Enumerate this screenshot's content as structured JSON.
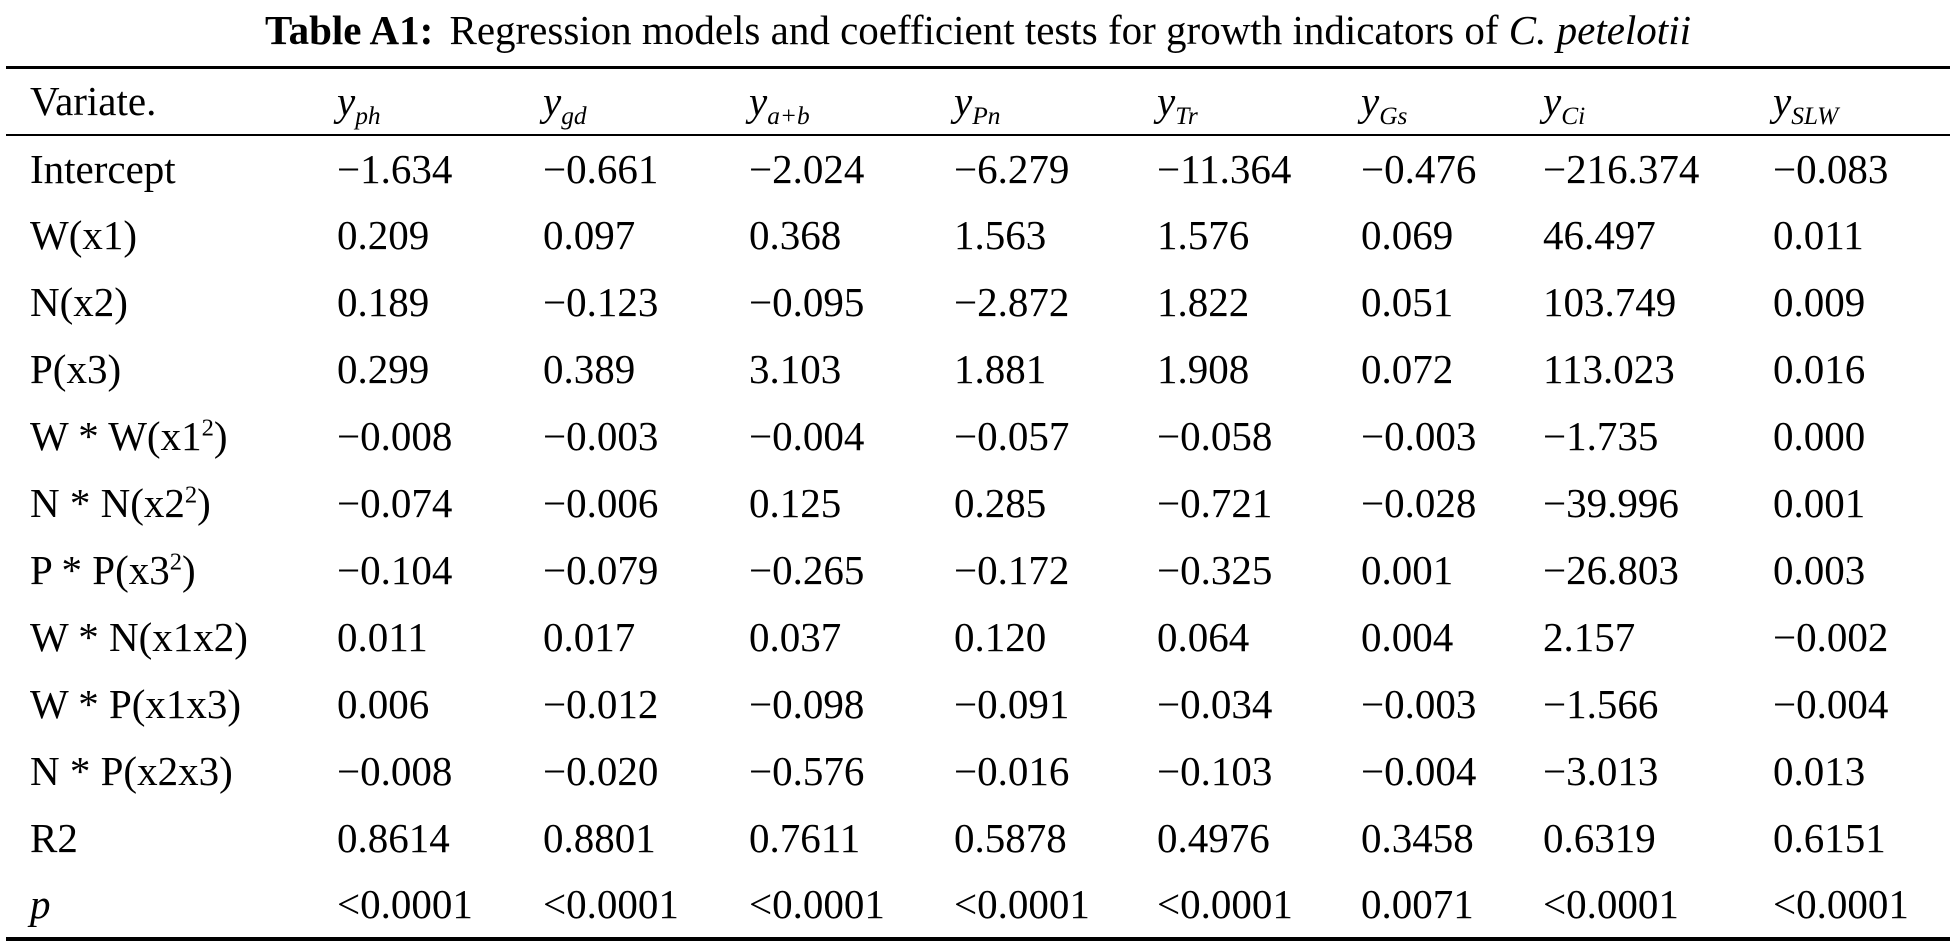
{
  "caption": {
    "label_bold": "Table A1:",
    "text": "Regression models and coefficient tests for growth indicators of",
    "species_italic": "C. petelotii"
  },
  "colors": {
    "text": "#000000",
    "background": "#ffffff",
    "rule": "#000000"
  },
  "table": {
    "header": {
      "first": "Variate.",
      "columns": [
        {
          "base": "y",
          "sub": "ph"
        },
        {
          "base": "y",
          "sub": "gd"
        },
        {
          "base": "y",
          "sub": "a+b"
        },
        {
          "base": "y",
          "sub": "Pn"
        },
        {
          "base": "y",
          "sub": "Tr"
        },
        {
          "base": "y",
          "sub": "Gs"
        },
        {
          "base": "y",
          "sub": "Ci"
        },
        {
          "base": "y",
          "sub": "SLW"
        }
      ]
    },
    "rows": [
      {
        "label": {
          "pre": "Intercept",
          "sup": "",
          "post": ""
        },
        "italic": false,
        "values": [
          "−1.634",
          "−0.661",
          "−2.024",
          "−6.279",
          "−11.364",
          "−0.476",
          "−216.374",
          "−0.083"
        ]
      },
      {
        "label": {
          "pre": "W(x1)",
          "sup": "",
          "post": ""
        },
        "italic": false,
        "values": [
          "0.209",
          "0.097",
          "0.368",
          "1.563",
          "1.576",
          "0.069",
          "46.497",
          "0.011"
        ]
      },
      {
        "label": {
          "pre": "N(x2)",
          "sup": "",
          "post": ""
        },
        "italic": false,
        "values": [
          "0.189",
          "−0.123",
          "−0.095",
          "−2.872",
          "1.822",
          "0.051",
          "103.749",
          "0.009"
        ]
      },
      {
        "label": {
          "pre": "P(x3)",
          "sup": "",
          "post": ""
        },
        "italic": false,
        "values": [
          "0.299",
          "0.389",
          "3.103",
          "1.881",
          "1.908",
          "0.072",
          "113.023",
          "0.016"
        ]
      },
      {
        "label": {
          "pre": "W * W(x1",
          "sup": "2",
          "post": ")"
        },
        "italic": false,
        "values": [
          "−0.008",
          "−0.003",
          "−0.004",
          "−0.057",
          "−0.058",
          "−0.003",
          "−1.735",
          "0.000"
        ]
      },
      {
        "label": {
          "pre": "N * N(x2",
          "sup": "2",
          "post": ")"
        },
        "italic": false,
        "values": [
          "−0.074",
          "−0.006",
          "0.125",
          "0.285",
          "−0.721",
          "−0.028",
          "−39.996",
          "0.001"
        ]
      },
      {
        "label": {
          "pre": "P * P(x3",
          "sup": "2",
          "post": ")"
        },
        "italic": false,
        "values": [
          "−0.104",
          "−0.079",
          "−0.265",
          "−0.172",
          "−0.325",
          "0.001",
          "−26.803",
          "0.003"
        ]
      },
      {
        "label": {
          "pre": "W * N(x1x2)",
          "sup": "",
          "post": ""
        },
        "italic": false,
        "values": [
          "0.011",
          "0.017",
          "0.037",
          "0.120",
          "0.064",
          "0.004",
          "2.157",
          "−0.002"
        ]
      },
      {
        "label": {
          "pre": "W * P(x1x3)",
          "sup": "",
          "post": ""
        },
        "italic": false,
        "values": [
          "0.006",
          "−0.012",
          "−0.098",
          "−0.091",
          "−0.034",
          "−0.003",
          "−1.566",
          "−0.004"
        ]
      },
      {
        "label": {
          "pre": "N * P(x2x3)",
          "sup": "",
          "post": ""
        },
        "italic": false,
        "values": [
          "−0.008",
          "−0.020",
          "−0.576",
          "−0.016",
          "−0.103",
          "−0.004",
          "−3.013",
          "0.013"
        ]
      },
      {
        "label": {
          "pre": "R2",
          "sup": "",
          "post": ""
        },
        "italic": false,
        "values": [
          "0.8614",
          "0.8801",
          "0.7611",
          "0.5878",
          "0.4976",
          "0.3458",
          "0.6319",
          "0.6151"
        ]
      },
      {
        "label": {
          "pre": "p",
          "sup": "",
          "post": ""
        },
        "italic": true,
        "values": [
          "<0.0001",
          "<0.0001",
          "<0.0001",
          "<0.0001",
          "<0.0001",
          "0.0071",
          "<0.0001",
          "<0.0001"
        ]
      }
    ]
  }
}
